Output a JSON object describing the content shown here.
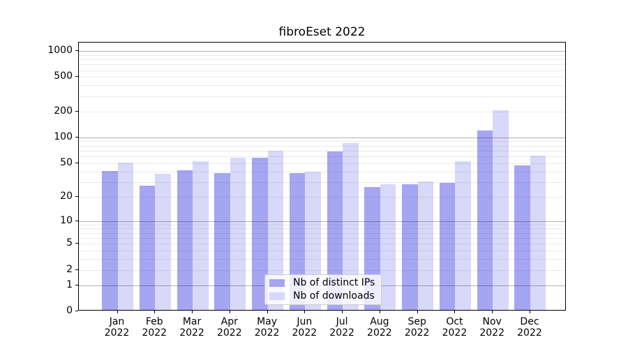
{
  "title": "fibroEset 2022",
  "chart_data": {
    "type": "bar",
    "title": "fibroEset 2022",
    "categories": [
      "Jan",
      "Feb",
      "Mar",
      "Apr",
      "May",
      "Jun",
      "Jul",
      "Aug",
      "Sep",
      "Oct",
      "Nov",
      "Dec"
    ],
    "x_year": "2022",
    "series": [
      {
        "name": "Nb of distinct IPs",
        "color": "#a5a5f2",
        "values": [
          39,
          26,
          40,
          37,
          56,
          37,
          66,
          25,
          27,
          28,
          116,
          45
        ]
      },
      {
        "name": "Nb of downloads",
        "color": "#d8d8f9",
        "values": [
          49,
          36,
          51,
          56,
          67,
          38,
          83,
          27,
          29,
          51,
          200,
          59
        ]
      }
    ],
    "yscale": "log1p",
    "yticks": [
      0,
      1,
      2,
      5,
      10,
      20,
      50,
      100,
      200,
      500,
      1000
    ],
    "ylim": [
      0,
      1250
    ],
    "grid": "both",
    "legend_position": "lower-center"
  }
}
